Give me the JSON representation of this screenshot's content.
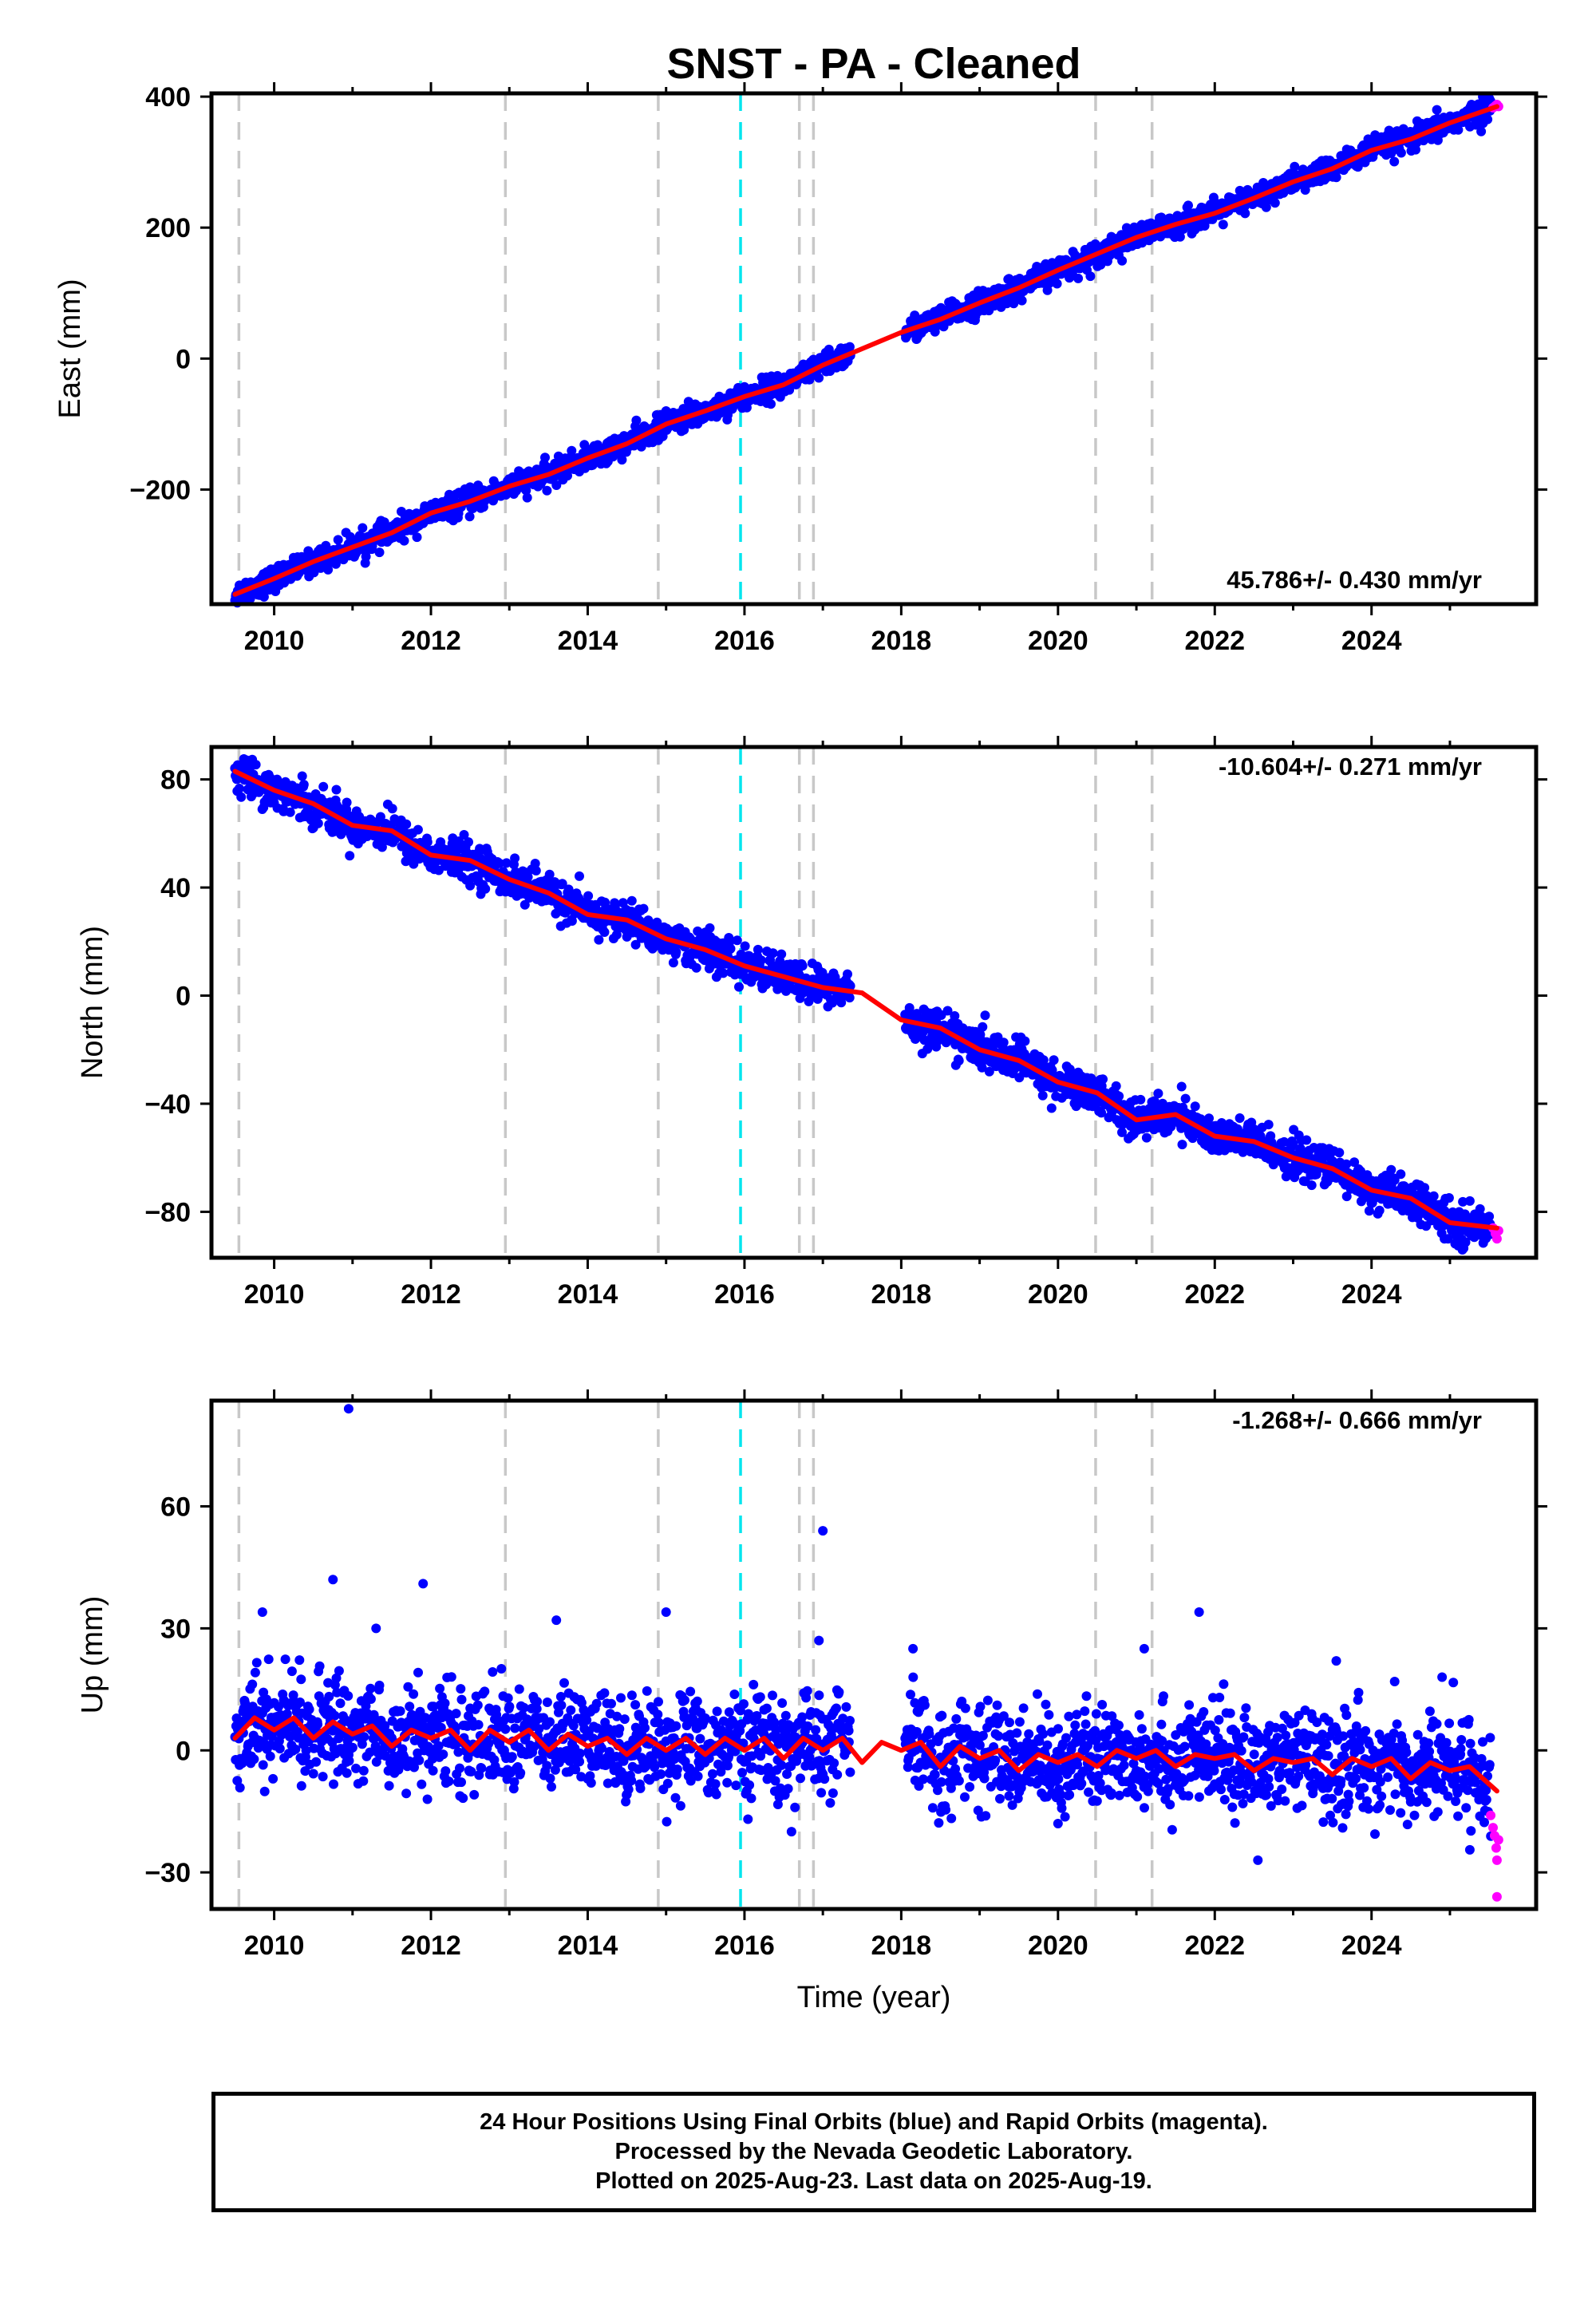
{
  "title": "SNST  - PA - Cleaned",
  "colors": {
    "final": "#0000ff",
    "rapid": "#ff00ff",
    "fit": "#ff0000",
    "equipment": "#c8c8c8",
    "earthquake": "#00e5ee"
  },
  "footer": {
    "line1": "24 Hour Positions Using Final Orbits (blue) and Rapid Orbits (magenta).",
    "line2": "Processed by the Nevada Geodetic Laboratory.",
    "line3": "Plotted on 2025-Aug-23. Last data on 2025-Aug-19."
  },
  "chart_data": [
    {
      "type": "scatter",
      "panel": "east",
      "ylabel": "East (mm)",
      "xlabel": "",
      "rate_label": "45.786+/- 0.430 mm/yr",
      "rate_position": "bottom-right",
      "xlim": [
        2009.2,
        2026.1
      ],
      "ylim": [
        -375,
        405
      ],
      "x_ticks": [
        2010,
        2012,
        2014,
        2016,
        2018,
        2020,
        2022,
        2024
      ],
      "x_tick_labels": [
        "2010",
        "2012",
        "2014",
        "2016",
        "2018",
        "2020",
        "2022",
        "2024"
      ],
      "y_ticks": [
        -200,
        0,
        200,
        400
      ],
      "y_tick_labels": [
        "−200",
        "0",
        "200",
        "400"
      ],
      "data_gap": [
        2017.35,
        2018.05
      ],
      "equipment_changes": [
        2009.55,
        2012.95,
        2014.9,
        2016.7,
        2016.88,
        2020.48,
        2021.2
      ],
      "earthquakes": [
        2015.95
      ],
      "fit_line": {
        "x": [
          2009.5,
          2010.0,
          2010.5,
          2011.0,
          2011.5,
          2012.0,
          2012.5,
          2013.0,
          2013.5,
          2014.0,
          2014.5,
          2015.0,
          2015.5,
          2016.0,
          2016.5,
          2017.0,
          2017.5,
          2018.0,
          2018.5,
          2019.0,
          2019.5,
          2020.0,
          2020.5,
          2021.0,
          2021.5,
          2022.0,
          2022.5,
          2023.0,
          2023.5,
          2024.0,
          2024.5,
          2025.0,
          2025.6
        ],
        "y": [
          -360,
          -336,
          -310,
          -288,
          -266,
          -236,
          -218,
          -195,
          -177,
          -152,
          -130,
          -100,
          -80,
          -58,
          -40,
          -10,
          15,
          40,
          60,
          85,
          108,
          135,
          160,
          185,
          205,
          222,
          245,
          270,
          290,
          318,
          335,
          360,
          385
        ]
      },
      "final_points": {
        "segments": [
          {
            "x_start": 2009.5,
            "x_end": 2017.35,
            "y_start": -360,
            "y_end": 10,
            "scatter": 9,
            "outliers": []
          },
          {
            "x_start": 2018.05,
            "x_end": 2025.52,
            "y_start": 50,
            "y_end": 380,
            "scatter": 9,
            "outliers": []
          }
        ]
      },
      "rapid_points": {
        "x": [
          2025.55,
          2025.58,
          2025.6,
          2025.62
        ],
        "y": [
          383,
          386,
          388,
          385
        ]
      }
    },
    {
      "type": "scatter",
      "panel": "north",
      "ylabel": "North (mm)",
      "xlabel": "",
      "rate_label": "-10.604+/- 0.271 mm/yr",
      "rate_position": "top-right",
      "xlim": [
        2009.2,
        2026.1
      ],
      "ylim": [
        -97,
        92
      ],
      "x_ticks": [
        2010,
        2012,
        2014,
        2016,
        2018,
        2020,
        2022,
        2024
      ],
      "x_tick_labels": [
        "2010",
        "2012",
        "2014",
        "2016",
        "2018",
        "2020",
        "2022",
        "2024"
      ],
      "y_ticks": [
        -80,
        -40,
        0,
        40,
        80
      ],
      "y_tick_labels": [
        "−80",
        "−40",
        "0",
        "40",
        "80"
      ],
      "data_gap": [
        2017.35,
        2018.05
      ],
      "equipment_changes": [
        2009.55,
        2012.95,
        2014.9,
        2016.7,
        2016.88,
        2020.48,
        2021.2
      ],
      "earthquakes": [
        2015.95
      ],
      "fit_line": {
        "x": [
          2009.5,
          2010.0,
          2010.5,
          2011.0,
          2011.5,
          2012.0,
          2012.5,
          2013.0,
          2013.5,
          2014.0,
          2014.5,
          2015.0,
          2015.5,
          2016.0,
          2016.5,
          2017.0,
          2017.5,
          2018.0,
          2018.5,
          2019.0,
          2019.5,
          2020.0,
          2020.5,
          2021.0,
          2021.5,
          2022.0,
          2022.5,
          2023.0,
          2023.5,
          2024.0,
          2024.5,
          2025.0,
          2025.6
        ],
        "y": [
          83,
          76,
          71,
          63,
          61,
          52,
          50,
          43,
          38,
          30,
          28,
          21,
          17,
          11,
          7,
          3,
          1,
          -9,
          -12,
          -20,
          -24,
          -32,
          -36,
          -46,
          -44,
          -52,
          -54,
          -60,
          -64,
          -72,
          -75,
          -84,
          -86
        ]
      },
      "final_points": {
        "segments": [
          {
            "x_start": 2009.5,
            "x_end": 2017.35,
            "y_start": 83,
            "y_end": 0,
            "scatter": 3.5,
            "outliers": []
          },
          {
            "x_start": 2018.05,
            "x_end": 2025.52,
            "y_start": -10,
            "y_end": -85,
            "scatter": 3.5,
            "outliers": []
          }
        ]
      },
      "rapid_points": {
        "x": [
          2025.55,
          2025.58,
          2025.6,
          2025.62
        ],
        "y": [
          -86,
          -88,
          -90,
          -87
        ]
      }
    },
    {
      "type": "scatter",
      "panel": "up",
      "ylabel": "Up (mm)",
      "xlabel": "Time (year)",
      "rate_label": "-1.268+/- 0.666 mm/yr",
      "rate_position": "top-right",
      "xlim": [
        2009.2,
        2026.1
      ],
      "ylim": [
        -39,
        86
      ],
      "x_ticks": [
        2010,
        2012,
        2014,
        2016,
        2018,
        2020,
        2022,
        2024
      ],
      "x_tick_labels": [
        "2010",
        "2012",
        "2014",
        "2016",
        "2018",
        "2020",
        "2022",
        "2024"
      ],
      "y_ticks": [
        -30,
        0,
        30,
        60
      ],
      "y_tick_labels": [
        "−30",
        "0",
        "30",
        "60"
      ],
      "data_gap": [
        2017.35,
        2018.05
      ],
      "equipment_changes": [
        2009.55,
        2012.95,
        2014.9,
        2016.7,
        2016.88,
        2020.48,
        2021.2
      ],
      "earthquakes": [
        2015.95
      ],
      "fit_line": {
        "x": [
          2009.5,
          2009.75,
          2010.0,
          2010.25,
          2010.5,
          2010.75,
          2011.0,
          2011.25,
          2011.5,
          2011.75,
          2012.0,
          2012.25,
          2012.5,
          2012.75,
          2013.0,
          2013.25,
          2013.5,
          2013.75,
          2014.0,
          2014.25,
          2014.5,
          2014.75,
          2015.0,
          2015.25,
          2015.5,
          2015.75,
          2016.0,
          2016.25,
          2016.5,
          2016.75,
          2017.0,
          2017.25,
          2017.5,
          2017.75,
          2018.0,
          2018.25,
          2018.5,
          2018.75,
          2019.0,
          2019.25,
          2019.5,
          2019.75,
          2020.0,
          2020.25,
          2020.5,
          2020.75,
          2021.0,
          2021.25,
          2021.5,
          2021.75,
          2022.0,
          2022.25,
          2022.5,
          2022.75,
          2023.0,
          2023.25,
          2023.5,
          2023.75,
          2024.0,
          2024.25,
          2024.5,
          2024.75,
          2025.0,
          2025.25,
          2025.6
        ],
        "y": [
          3,
          8,
          5,
          8,
          3,
          7,
          4,
          6,
          1,
          5,
          3,
          5,
          0,
          5,
          2,
          5,
          0,
          4,
          1,
          3,
          -1,
          3,
          0,
          3,
          -1,
          3,
          0,
          3,
          -2,
          3,
          0,
          3,
          -3,
          2,
          0,
          2,
          -4,
          1,
          -2,
          0,
          -5,
          -1,
          -3,
          -1,
          -4,
          0,
          -2,
          0,
          -4,
          -1,
          -2,
          -1,
          -5,
          -2,
          -3,
          -2,
          -6,
          -2,
          -4,
          -2,
          -7,
          -3,
          -5,
          -4,
          -10
        ]
      },
      "final_points": {
        "segments": [
          {
            "x_start": 2009.5,
            "x_end": 2017.35,
            "y_start": 4,
            "y_end": 2,
            "scatter": 6,
            "outliers": [
              [
                2010.95,
                84
              ],
              [
                2010.75,
                42
              ],
              [
                2011.9,
                41
              ],
              [
                2009.85,
                34
              ],
              [
                2015.0,
                34
              ],
              [
                2013.6,
                32
              ],
              [
                2017.0,
                54
              ],
              [
                2016.6,
                -20
              ],
              [
                2011.3,
                30
              ],
              [
                2016.95,
                27
              ]
            ]
          },
          {
            "x_start": 2018.05,
            "x_end": 2025.52,
            "y_start": 1,
            "y_end": -5,
            "scatter": 6,
            "outliers": [
              [
                2018.15,
                25
              ],
              [
                2021.8,
                34
              ],
              [
                2021.1,
                25
              ],
              [
                2022.55,
                -27
              ],
              [
                2023.55,
                22
              ],
              [
                2020.0,
                -18
              ],
              [
                2024.9,
                18
              ]
            ]
          }
        ]
      },
      "rapid_points": {
        "x": [
          2025.52,
          2025.55,
          2025.57,
          2025.59,
          2025.6,
          2025.62,
          2025.6
        ],
        "y": [
          -16,
          -19,
          -21,
          -24,
          -27,
          -22,
          -36
        ]
      }
    }
  ]
}
